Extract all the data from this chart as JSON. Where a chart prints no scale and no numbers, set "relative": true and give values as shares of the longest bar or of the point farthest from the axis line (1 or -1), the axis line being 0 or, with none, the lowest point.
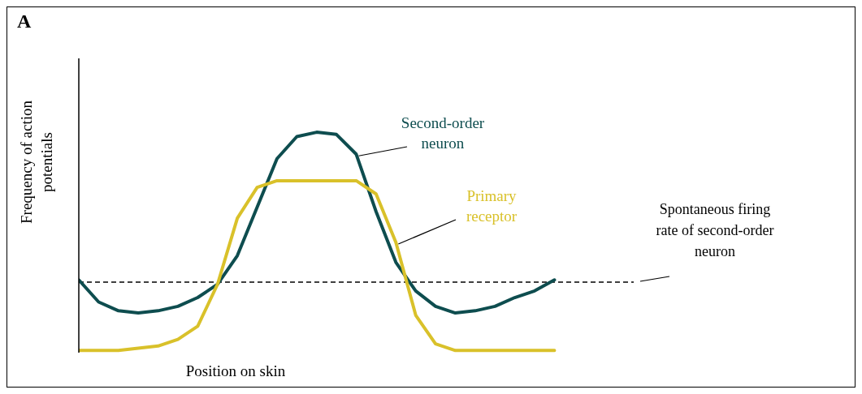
{
  "chart_data": {
    "type": "line",
    "relative": true,
    "title": "A",
    "xlabel": "Position on skin",
    "ylabel": "Frequency of action potentials",
    "categories": [
      null,
      null,
      null,
      null,
      null,
      null,
      null,
      null,
      null,
      null,
      null,
      null,
      null,
      null,
      null,
      null,
      null,
      null,
      null,
      null,
      null,
      null,
      null,
      null,
      null,
      null,
      null,
      null,
      null
    ],
    "series": [
      {
        "name": "Second-order neuron",
        "color": "#0e4d4f",
        "values": [
          0.33,
          0.23,
          0.19,
          0.18,
          0.19,
          0.21,
          0.25,
          0.31,
          0.44,
          0.66,
          0.88,
          0.98,
          1,
          0.99,
          0.9,
          0.64,
          0.41,
          0.28,
          0.21,
          0.18,
          0.19,
          0.21,
          0.25,
          0.28,
          0.33,
          null,
          null,
          null,
          null
        ]
      },
      {
        "name": "Primary receptor",
        "color": "#d9c12a",
        "values": [
          0.01,
          0.01,
          0.01,
          0.02,
          0.03,
          0.06,
          0.12,
          0.31,
          0.61,
          0.75,
          0.78,
          0.78,
          0.78,
          0.78,
          0.78,
          0.72,
          0.5,
          0.17,
          0.04,
          0.01,
          0.01,
          0.01,
          0.01,
          0.01,
          0.01,
          null,
          null,
          null,
          null
        ]
      }
    ],
    "ref_lines": [
      {
        "axis": "y",
        "value": 0.32,
        "label": "Spontaneous firing rate of second-order neuron",
        "color": "#000000",
        "line_style": "dashed"
      }
    ],
    "grid": false,
    "legend": false,
    "marker": "none",
    "line_style": "solid"
  }
}
